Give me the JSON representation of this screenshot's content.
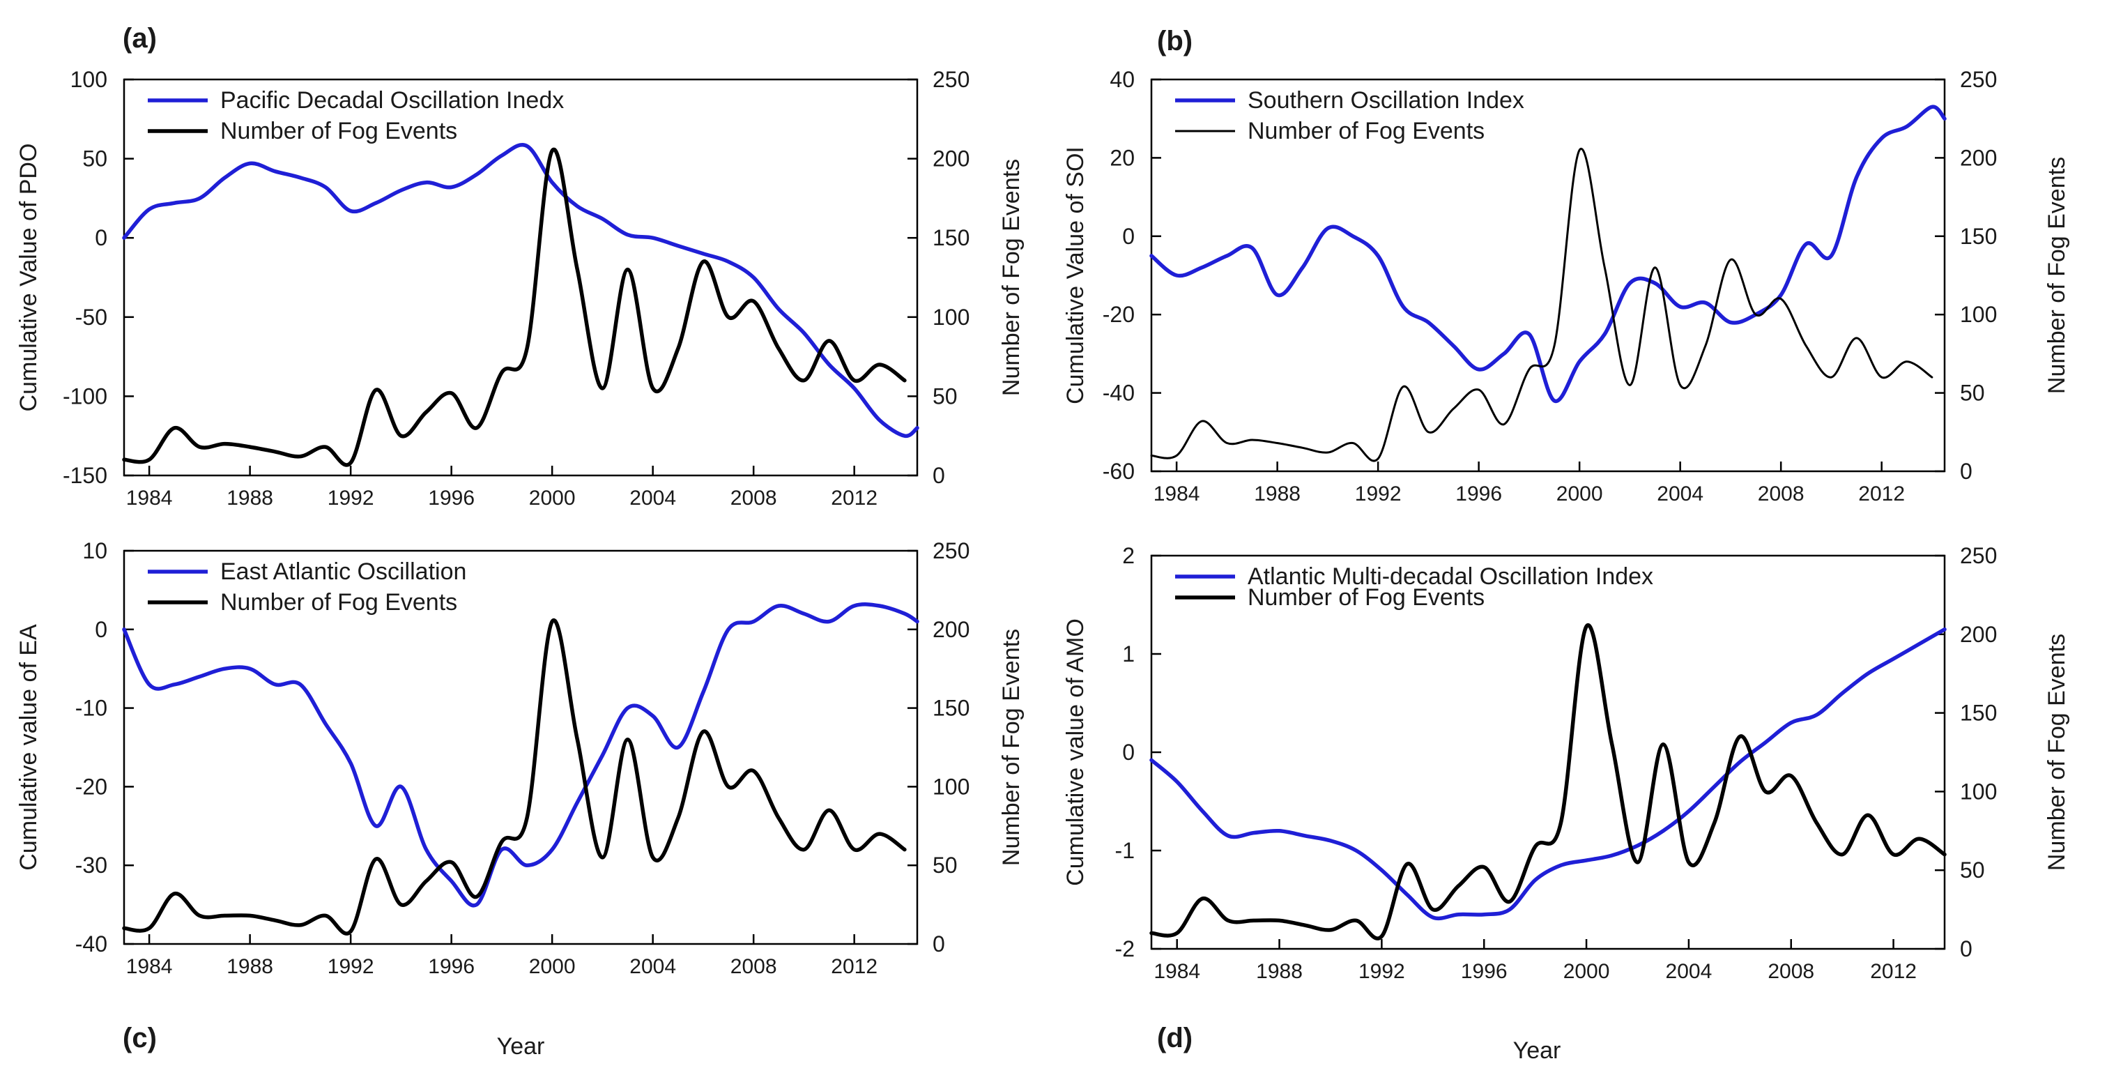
{
  "chart_data": [
    {
      "type": "line",
      "panel_label": "(a)",
      "xlabel": "",
      "x_ticks": [
        "1984",
        "1988",
        "1992",
        "1996",
        "2000",
        "2004",
        "2008",
        "2012"
      ],
      "xlim": [
        1983,
        2014.5
      ],
      "ylabel_left": "Cumulative Value of PDO",
      "ylim_left": [
        -150,
        100
      ],
      "yticks_left": [
        "-150",
        "-100",
        "-50",
        "0",
        "50",
        "100"
      ],
      "ylabel_right": "Number of Fog Events",
      "ylim_right": [
        0,
        250
      ],
      "yticks_right": [
        "0",
        "50",
        "100",
        "150",
        "200",
        "250"
      ],
      "legend_position": "top-left",
      "legend": [
        "Pacific Decadal Oscillation Inedx",
        "Number of Fog Events"
      ],
      "colors": {
        "index": "#1f1fd6",
        "fog": "#000000"
      },
      "series": [
        {
          "name": "Pacific Decadal Oscillation Inedx",
          "axis": "left",
          "x": [
            1983,
            1984,
            1985,
            1986,
            1987,
            1988,
            1989,
            1990,
            1991,
            1992,
            1993,
            1994,
            1995,
            1996,
            1997,
            1998,
            1999,
            2000,
            2001,
            2002,
            2003,
            2004,
            2005,
            2006,
            2007,
            2008,
            2009,
            2010,
            2011,
            2012,
            2013,
            2014,
            2014.5
          ],
          "values": [
            0,
            18,
            22,
            25,
            38,
            47,
            42,
            38,
            32,
            17,
            22,
            30,
            35,
            32,
            40,
            52,
            58,
            35,
            20,
            12,
            2,
            0,
            -5,
            -10,
            -15,
            -25,
            -45,
            -60,
            -80,
            -95,
            -115,
            -125,
            -120
          ]
        },
        {
          "name": "Number of Fog Events",
          "axis": "right",
          "x": [
            1983,
            1984,
            1985,
            1986,
            1987,
            1988,
            1989,
            1990,
            1991,
            1992,
            1993,
            1994,
            1995,
            1996,
            1997,
            1998,
            1999,
            2000,
            2001,
            2002,
            2003,
            2004,
            2005,
            2006,
            2007,
            2008,
            2009,
            2010,
            2011,
            2012,
            2013,
            2014
          ],
          "values": [
            10,
            10,
            30,
            18,
            20,
            18,
            15,
            12,
            18,
            8,
            54,
            25,
            40,
            52,
            30,
            65,
            80,
            205,
            130,
            55,
            130,
            55,
            80,
            135,
            100,
            110,
            80,
            60,
            85,
            60,
            70,
            60
          ]
        }
      ]
    },
    {
      "type": "line",
      "panel_label": "(b)",
      "xlabel": "",
      "x_ticks": [
        "1984",
        "1988",
        "1992",
        "1996",
        "2000",
        "2004",
        "2008",
        "2012"
      ],
      "xlim": [
        1983,
        2014.5
      ],
      "ylabel_left": "Cumulative Value of SOI",
      "ylim_left": [
        -60,
        40
      ],
      "yticks_left": [
        "-60",
        "-40",
        "-20",
        "0",
        "20",
        "40"
      ],
      "ylabel_right": "Number of Fog Events",
      "ylim_right": [
        0,
        250
      ],
      "yticks_right": [
        "0",
        "50",
        "100",
        "150",
        "200",
        "250"
      ],
      "legend_position": "top-left",
      "legend": [
        "Southern Oscillation Index",
        "Number of Fog Events"
      ],
      "colors": {
        "index": "#1f1fd6",
        "fog": "#000000"
      },
      "series": [
        {
          "name": "Southern Oscillation Index",
          "axis": "left",
          "x": [
            1983,
            1984,
            1985,
            1986,
            1987,
            1988,
            1989,
            1990,
            1991,
            1992,
            1993,
            1994,
            1995,
            1996,
            1997,
            1998,
            1999,
            2000,
            2001,
            2002,
            2003,
            2004,
            2005,
            2006,
            2007,
            2008,
            2009,
            2010,
            2011,
            2012,
            2013,
            2014,
            2014.5
          ],
          "values": [
            -5,
            -10,
            -8,
            -5,
            -3,
            -15,
            -8,
            2,
            0,
            -5,
            -18,
            -22,
            -28,
            -34,
            -30,
            -25,
            -42,
            -32,
            -25,
            -12,
            -12,
            -18,
            -17,
            -22,
            -20,
            -15,
            -2,
            -5,
            15,
            25,
            28,
            33,
            30
          ]
        },
        {
          "name": "Number of Fog Events",
          "axis": "right",
          "x": [
            1983,
            1984,
            1985,
            1986,
            1987,
            1988,
            1989,
            1990,
            1991,
            1992,
            1993,
            1994,
            1995,
            1996,
            1997,
            1998,
            1999,
            2000,
            2001,
            2002,
            2003,
            2004,
            2005,
            2006,
            2007,
            2008,
            2009,
            2010,
            2011,
            2012,
            2013,
            2014
          ],
          "values": [
            10,
            10,
            32,
            18,
            20,
            18,
            15,
            12,
            18,
            8,
            54,
            25,
            40,
            52,
            30,
            65,
            80,
            205,
            130,
            55,
            130,
            55,
            80,
            135,
            100,
            110,
            80,
            60,
            85,
            60,
            70,
            60
          ]
        }
      ]
    },
    {
      "type": "line",
      "panel_label": "(c)",
      "xlabel": "Year",
      "x_ticks": [
        "1984",
        "1988",
        "1992",
        "1996",
        "2000",
        "2004",
        "2008",
        "2012"
      ],
      "xlim": [
        1983,
        2014.5
      ],
      "ylabel_left": "Cumulative value of EA",
      "ylim_left": [
        -40,
        10
      ],
      "yticks_left": [
        "-40",
        "-30",
        "-20",
        "-10",
        "0",
        "10"
      ],
      "ylabel_right": "Number of Fog Events",
      "ylim_right": [
        0,
        250
      ],
      "yticks_right": [
        "0",
        "50",
        "100",
        "150",
        "200",
        "250"
      ],
      "legend_position": "top-left",
      "legend": [
        "East Atlantic Oscillation",
        "Number of Fog Events"
      ],
      "colors": {
        "index": "#1f1fd6",
        "fog": "#000000"
      },
      "series": [
        {
          "name": "East Atlantic Oscillation",
          "axis": "left",
          "x": [
            1983,
            1984,
            1985,
            1986,
            1987,
            1988,
            1989,
            1990,
            1991,
            1992,
            1993,
            1994,
            1995,
            1996,
            1997,
            1998,
            1999,
            2000,
            2001,
            2002,
            2003,
            2004,
            2005,
            2006,
            2007,
            2008,
            2009,
            2010,
            2011,
            2012,
            2013,
            2014,
            2014.5
          ],
          "values": [
            0,
            -7,
            -7,
            -6,
            -5,
            -5,
            -7,
            -7,
            -12,
            -17,
            -25,
            -20,
            -28,
            -32,
            -35,
            -28,
            -30,
            -28,
            -22,
            -16,
            -10,
            -11,
            -15,
            -8,
            0,
            1,
            3,
            2,
            1,
            3,
            3,
            2,
            1
          ]
        },
        {
          "name": "Number of Fog Events",
          "axis": "right",
          "x": [
            1983,
            1984,
            1985,
            1986,
            1987,
            1988,
            1989,
            1990,
            1991,
            1992,
            1993,
            1994,
            1995,
            1996,
            1997,
            1998,
            1999,
            2000,
            2001,
            2002,
            2003,
            2004,
            2005,
            2006,
            2007,
            2008,
            2009,
            2010,
            2011,
            2012,
            2013,
            2014
          ],
          "values": [
            10,
            10,
            32,
            18,
            18,
            18,
            15,
            12,
            18,
            8,
            54,
            25,
            40,
            52,
            30,
            65,
            80,
            205,
            130,
            55,
            130,
            55,
            80,
            135,
            100,
            110,
            80,
            60,
            85,
            60,
            70,
            60
          ]
        }
      ]
    },
    {
      "type": "line",
      "panel_label": "(d)",
      "xlabel": "Year",
      "x_ticks": [
        "1984",
        "1988",
        "1992",
        "1996",
        "2000",
        "2004",
        "2008",
        "2012"
      ],
      "xlim": [
        1983,
        2014
      ],
      "ylabel_left": "Cumulative value of AMO",
      "ylim_left": [
        -2,
        2
      ],
      "yticks_left": [
        "-2",
        "-1",
        "0",
        "1",
        "2"
      ],
      "ylabel_right": "Number of Fog Events",
      "ylim_right": [
        0,
        250
      ],
      "yticks_right": [
        "0",
        "50",
        "100",
        "150",
        "200",
        "250"
      ],
      "legend_position": "top-left",
      "legend": [
        "Atlantic Multi-decadal Oscillation Index",
        "Number of Fog Events"
      ],
      "colors": {
        "index": "#1f1fd6",
        "fog": "#000000"
      },
      "series": [
        {
          "name": "Atlantic Multi-decadal Oscillation Index",
          "axis": "left",
          "x": [
            1983,
            1984,
            1985,
            1986,
            1987,
            1988,
            1989,
            1990,
            1991,
            1992,
            1993,
            1994,
            1995,
            1996,
            1997,
            1998,
            1999,
            2000,
            2001,
            2002,
            2003,
            2004,
            2005,
            2006,
            2007,
            2008,
            2009,
            2010,
            2011,
            2012,
            2013,
            2014
          ],
          "values": [
            -0.08,
            -0.3,
            -0.6,
            -0.85,
            -0.82,
            -0.8,
            -0.85,
            -0.9,
            -1.0,
            -1.2,
            -1.45,
            -1.68,
            -1.65,
            -1.65,
            -1.6,
            -1.3,
            -1.15,
            -1.1,
            -1.05,
            -0.95,
            -0.8,
            -0.6,
            -0.35,
            -0.1,
            0.1,
            0.3,
            0.38,
            0.6,
            0.8,
            0.95,
            1.1,
            1.25
          ]
        },
        {
          "name": "Number of Fog Events",
          "axis": "right",
          "x": [
            1983,
            1984,
            1985,
            1986,
            1987,
            1988,
            1989,
            1990,
            1991,
            1992,
            1993,
            1994,
            1995,
            1996,
            1997,
            1998,
            1999,
            2000,
            2001,
            2002,
            2003,
            2004,
            2005,
            2006,
            2007,
            2008,
            2009,
            2010,
            2011,
            2012,
            2013,
            2014
          ],
          "values": [
            10,
            10,
            32,
            18,
            18,
            18,
            15,
            12,
            18,
            8,
            54,
            25,
            40,
            52,
            30,
            65,
            80,
            205,
            130,
            55,
            130,
            55,
            80,
            135,
            100,
            110,
            80,
            60,
            85,
            60,
            70,
            60
          ]
        }
      ]
    }
  ]
}
